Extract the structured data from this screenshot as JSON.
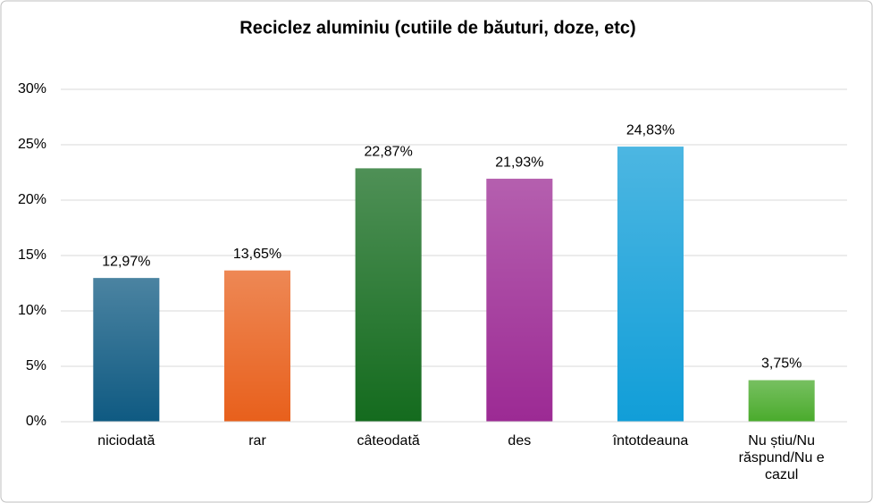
{
  "chart_data": {
    "type": "bar",
    "title": "Reciclez aluminiu (cutiile de băuturi, doze, etc)",
    "categories": [
      "niciodată",
      "rar",
      "câteodată",
      "des",
      "întotdeauna",
      "Nu știu/Nu răspund/Nu e cazul"
    ],
    "values": [
      12.97,
      13.65,
      22.87,
      21.93,
      24.83,
      3.75
    ],
    "value_labels": [
      "12,97%",
      "13,65%",
      "22,87%",
      "21,93%",
      "24,83%",
      "3,75%"
    ],
    "colors": [
      "#0f5a82",
      "#e8601c",
      "#146b1e",
      "#9c2a94",
      "#119ed8",
      "#4aab2c"
    ],
    "ylim": [
      0,
      30
    ],
    "yticks": [
      {
        "value": 0,
        "label": "0%"
      },
      {
        "value": 5,
        "label": "5%"
      },
      {
        "value": 10,
        "label": "10%"
      },
      {
        "value": 15,
        "label": "15%"
      },
      {
        "value": 20,
        "label": "20%"
      },
      {
        "value": 25,
        "label": "25%"
      },
      {
        "value": 30,
        "label": "30%"
      }
    ],
    "grid": true
  }
}
